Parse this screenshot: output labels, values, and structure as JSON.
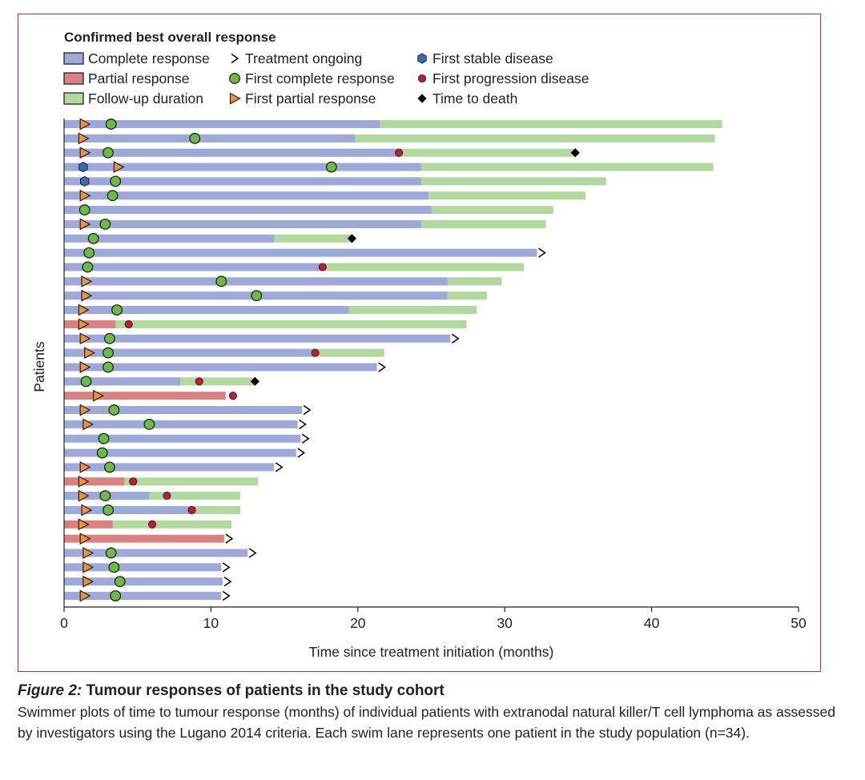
{
  "chart_data": {
    "type": "swimmer",
    "legend_title": "Confirmed best overall response",
    "legend": [
      {
        "key": "cr",
        "label": "Complete response",
        "symbol": "box",
        "color": "#9ea9d8"
      },
      {
        "key": "pr",
        "label": "Partial response",
        "symbol": "box",
        "color": "#d98282"
      },
      {
        "key": "fu",
        "label": "Follow-up duration",
        "symbol": "box",
        "color": "#b2d8a0"
      },
      {
        "key": "ongoing",
        "label": "Treatment ongoing",
        "symbol": "chevron",
        "color": "#000000"
      },
      {
        "key": "fcr",
        "label": "First complete response",
        "symbol": "circle",
        "color": "#6dbb45"
      },
      {
        "key": "fpr",
        "label": "First partial response",
        "symbol": "triangle",
        "color": "#f0913a"
      },
      {
        "key": "fsd",
        "label": "First stable disease",
        "symbol": "hexagon",
        "color": "#3d6bb3"
      },
      {
        "key": "fpd",
        "label": "First progression disease",
        "symbol": "dot",
        "color": "#c4183c"
      },
      {
        "key": "death",
        "label": "Time to death",
        "symbol": "diamond",
        "color": "#000000"
      }
    ],
    "xlabel": "Time since treatment initiation (months)",
    "ylabel": "Patients",
    "xlim": [
      0,
      50
    ],
    "xticks": [
      "0",
      "10",
      "20",
      "30",
      "40",
      "50"
    ],
    "patients": [
      {
        "response": "CR",
        "bar_end": 21.5,
        "fu_end": 44.8,
        "fpr": 1.4,
        "fcr": 3.2
      },
      {
        "response": "CR",
        "bar_end": 19.8,
        "fu_end": 44.3,
        "fpr": 1.3,
        "fcr": 8.9
      },
      {
        "response": "CR",
        "bar_end": 22.8,
        "fu_end": 34.8,
        "fpr": 1.4,
        "fcr": 3.0,
        "fpd": 22.8,
        "death": 34.8
      },
      {
        "response": "CR",
        "bar_end": 24.3,
        "fu_end": 44.2,
        "fsd": 1.3,
        "fpr": 3.7,
        "fcr": 18.2
      },
      {
        "response": "CR",
        "bar_end": 24.3,
        "fu_end": 36.9,
        "fsd": 1.4,
        "fcr": 3.5
      },
      {
        "response": "CR",
        "bar_end": 24.8,
        "fu_end": 35.5,
        "fpr": 1.4,
        "fcr": 3.3
      },
      {
        "response": "CR",
        "bar_end": 25.0,
        "fu_end": 33.3,
        "fcr": 1.4
      },
      {
        "response": "CR",
        "bar_end": 24.3,
        "fu_end": 32.8,
        "fpr": 1.4,
        "fcr": 2.8
      },
      {
        "response": "CR",
        "bar_end": 14.3,
        "fu_end": 19.6,
        "fcr": 2.0,
        "death": 19.6
      },
      {
        "response": "CR",
        "bar_end": 32.2,
        "fcr": 1.7,
        "ongoing": true
      },
      {
        "response": "CR",
        "bar_end": 17.6,
        "fu_end": 31.3,
        "fcr": 1.6,
        "fpd": 17.6
      },
      {
        "response": "CR",
        "bar_end": 26.1,
        "fu_end": 29.8,
        "fpr": 1.5,
        "fcr": 10.7
      },
      {
        "response": "CR",
        "bar_end": 26.1,
        "fu_end": 28.8,
        "fpr": 1.5,
        "fcr": 13.1
      },
      {
        "response": "CR",
        "bar_end": 19.4,
        "fu_end": 28.1,
        "fpr": 1.3,
        "fcr": 3.6
      },
      {
        "response": "PR",
        "bar_end": 3.5,
        "fu_end": 27.4,
        "fpr": 1.3,
        "fpd": 4.4
      },
      {
        "response": "CR",
        "bar_end": 26.3,
        "fpr": 1.4,
        "fcr": 3.1,
        "ongoing": true
      },
      {
        "response": "CR",
        "bar_end": 17.1,
        "fu_end": 21.8,
        "fpr": 1.7,
        "fcr": 3.0,
        "fpd": 17.1
      },
      {
        "response": "CR",
        "bar_end": 21.3,
        "fpr": 1.4,
        "fcr": 3.0,
        "ongoing": true
      },
      {
        "response": "CR",
        "bar_end": 7.9,
        "fu_end": 13.0,
        "fcr": 1.5,
        "fpd": 9.2,
        "death": 13.0
      },
      {
        "response": "PR",
        "bar_end": 11.0,
        "fpr": 2.3,
        "fpd": 11.5
      },
      {
        "response": "CR",
        "bar_end": 16.2,
        "fpr": 1.4,
        "fcr": 3.4,
        "ongoing": true
      },
      {
        "response": "CR",
        "bar_end": 15.9,
        "fpr": 1.6,
        "fcr": 5.8,
        "ongoing": true
      },
      {
        "response": "CR",
        "bar_end": 16.1,
        "fcr": 2.7,
        "ongoing": true
      },
      {
        "response": "CR",
        "bar_end": 15.8,
        "fcr": 2.6,
        "ongoing": true
      },
      {
        "response": "CR",
        "bar_end": 14.3,
        "fpr": 1.4,
        "fcr": 3.1,
        "ongoing": true
      },
      {
        "response": "PR",
        "bar_end": 4.1,
        "fu_end": 13.2,
        "fpr": 1.3,
        "fpd": 4.7
      },
      {
        "response": "CR",
        "bar_end": 5.8,
        "fu_end": 12.0,
        "fpr": 1.3,
        "fcr": 2.8,
        "fpd": 7.0
      },
      {
        "response": "CR",
        "bar_end": 8.7,
        "fu_end": 12.0,
        "fpr": 1.5,
        "fcr": 3.0,
        "fpd": 8.7
      },
      {
        "response": "PR",
        "bar_end": 3.3,
        "fu_end": 11.4,
        "fpr": 1.3,
        "fpd": 6.0
      },
      {
        "response": "PR",
        "bar_end": 10.9,
        "fpr": 1.4,
        "ongoing": true
      },
      {
        "response": "CR",
        "bar_end": 12.5,
        "fpr": 1.6,
        "fcr": 3.2,
        "ongoing": true
      },
      {
        "response": "CR",
        "bar_end": 10.7,
        "fpr": 1.6,
        "fcr": 3.4,
        "ongoing": true
      },
      {
        "response": "CR",
        "bar_end": 10.8,
        "fpr": 1.6,
        "fcr": 3.8,
        "ongoing": true
      },
      {
        "response": "CR",
        "bar_end": 10.7,
        "fpr": 1.4,
        "fcr": 3.5,
        "ongoing": true
      }
    ]
  },
  "caption": {
    "label": "Figure 2:",
    "title": "Tumour responses of patients in the study cohort",
    "body": "Swimmer plots of time to tumour response (months) of individual patients with extranodal natural killer/T cell lymphoma as assessed by investigators using the Lugano 2014 criteria. Each swim lane represents one patient in the study population (n=34)."
  }
}
